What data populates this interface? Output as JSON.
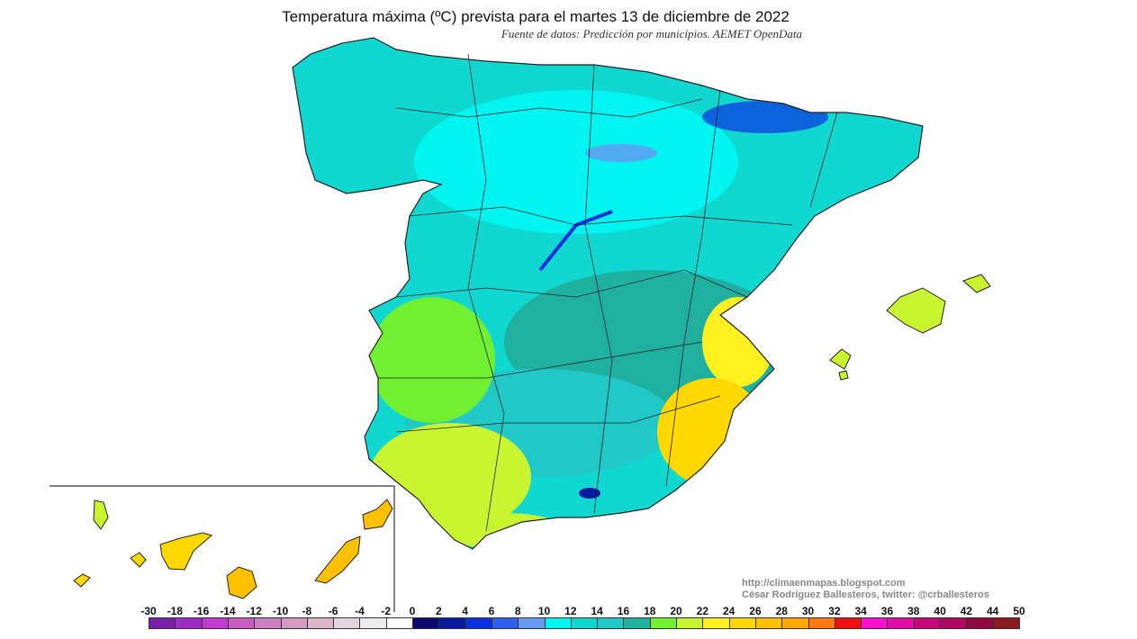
{
  "header": {
    "title": "Temperatura máxima (ºC) prevista para el martes 13 de diciembre de 2022",
    "subtitle": "Fuente de datos: Predicción por municipios. AEMET OpenData"
  },
  "credits": {
    "url": "http://climaenmapas.blogspot.com",
    "author": "César Rodríguez Ballesteros, twitter: @crballesteros"
  },
  "legend": {
    "labels": [
      "-30",
      "-18",
      "-16",
      "-14",
      "-12",
      "-10",
      "-8",
      "-6",
      "-4",
      "-2",
      "0",
      "2",
      "4",
      "6",
      "8",
      "10",
      "12",
      "14",
      "16",
      "18",
      "20",
      "22",
      "24",
      "26",
      "28",
      "30",
      "32",
      "34",
      "36",
      "38",
      "40",
      "42",
      "44",
      "50"
    ],
    "colors": [
      "#7a1fa8",
      "#9b2cc4",
      "#c23ad0",
      "#c85cc0",
      "#cc80bf",
      "#d39bc0",
      "#dbb5c8",
      "#e4d5dc",
      "#ececec",
      "#ffffff",
      "#0a0a70",
      "#0a1aa0",
      "#0a30e0",
      "#2e60f0",
      "#6699f0",
      "#00f5f0",
      "#10d8d0",
      "#20c8c8",
      "#20b0a0",
      "#70f030",
      "#c8f530",
      "#fff020",
      "#ffd800",
      "#ffc000",
      "#ffa800",
      "#ff7810",
      "#f01010",
      "#ff10d0",
      "#e00ca8",
      "#c8087a",
      "#b00860",
      "#900840",
      "#8a1a20"
    ]
  }
}
